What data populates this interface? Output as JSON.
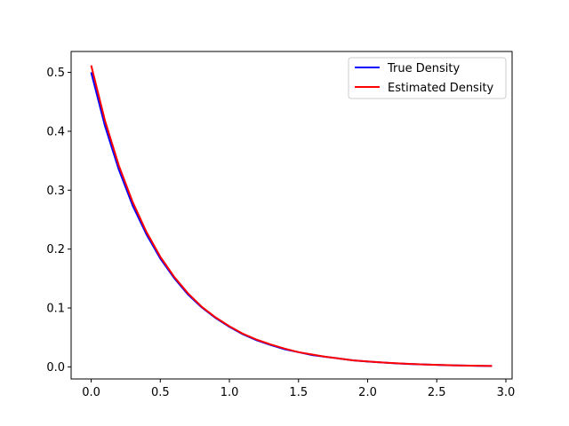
{
  "chart_data": {
    "type": "line",
    "title": "",
    "xlabel": "",
    "ylabel": "",
    "xlim": [
      -0.145,
      3.045
    ],
    "ylim": [
      -0.0205,
      0.5355
    ],
    "xticks": [
      0.0,
      0.5,
      1.0,
      1.5,
      2.0,
      2.5,
      3.0
    ],
    "xtick_labels": [
      "0.0",
      "0.5",
      "1.0",
      "1.5",
      "2.0",
      "2.5",
      "3.0"
    ],
    "yticks": [
      0.0,
      0.1,
      0.2,
      0.3,
      0.4,
      0.5
    ],
    "ytick_labels": [
      "0.0",
      "0.1",
      "0.2",
      "0.3",
      "0.4",
      "0.5"
    ],
    "grid": false,
    "legend_position": "top-right",
    "x": [
      0.0,
      0.1,
      0.2,
      0.3,
      0.4,
      0.5,
      0.6,
      0.7,
      0.8,
      0.9,
      1.0,
      1.1,
      1.2,
      1.3,
      1.4,
      1.5,
      1.6,
      1.7,
      1.8,
      1.9,
      2.0,
      2.1,
      2.2,
      2.3,
      2.4,
      2.5,
      2.6,
      2.7,
      2.8,
      2.9
    ],
    "series": [
      {
        "name": "True Density",
        "color": "#0000ff",
        "values": [
          0.5,
          0.409,
          0.335,
          0.274,
          0.225,
          0.184,
          0.151,
          0.123,
          0.101,
          0.083,
          0.068,
          0.055,
          0.045,
          0.037,
          0.03,
          0.025,
          0.02,
          0.017,
          0.014,
          0.011,
          0.009,
          0.0075,
          0.0061,
          0.005,
          0.0041,
          0.0034,
          0.0027,
          0.0022,
          0.0018,
          0.0015
        ]
      },
      {
        "name": "Estimated Density",
        "color": "#ff0000",
        "values": [
          0.512,
          0.418,
          0.342,
          0.28,
          0.229,
          0.187,
          0.153,
          0.125,
          0.102,
          0.084,
          0.069,
          0.056,
          0.046,
          0.038,
          0.031,
          0.025,
          0.021,
          0.017,
          0.014,
          0.011,
          0.0093,
          0.0076,
          0.0062,
          0.0051,
          0.0042,
          0.0034,
          0.0028,
          0.0023,
          0.0019,
          0.0015
        ]
      }
    ]
  }
}
